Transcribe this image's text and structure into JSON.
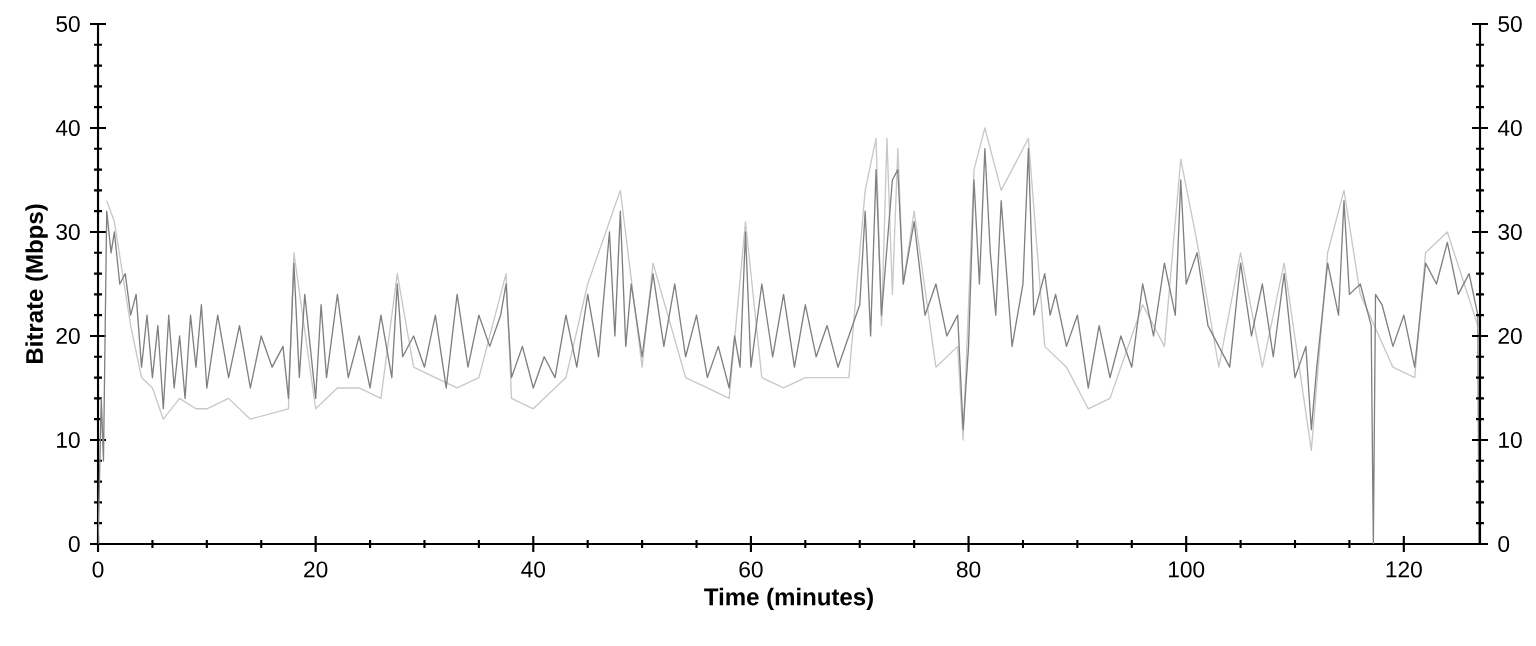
{
  "chart_data": {
    "type": "line",
    "xlabel": "Time (minutes)",
    "ylabel": "Bitrate (Mbps)",
    "xlim": [
      0,
      127
    ],
    "xticks": [
      0,
      20,
      40,
      60,
      80,
      100,
      120
    ],
    "ylim": [
      0,
      50
    ],
    "yticks": [
      0,
      10,
      20,
      30,
      40,
      50
    ],
    "y2lim": [
      0,
      50
    ],
    "y2ticks": [
      0,
      10,
      20,
      30,
      40,
      50
    ],
    "grid": false,
    "marker": "none",
    "line_style": "solid",
    "series": [
      {
        "color": "#c8c8c8",
        "x": [
          0.8,
          1.5,
          3,
          4,
          5,
          6,
          7.5,
          9,
          10,
          12,
          14,
          17.5,
          18,
          20,
          22,
          24,
          26,
          27.5,
          29,
          31,
          33,
          35,
          37.5,
          38,
          40,
          43,
          45,
          47,
          48,
          50,
          51,
          54,
          56,
          58,
          59.5,
          61,
          63,
          65,
          67,
          69,
          70.5,
          71.5,
          72,
          72.5,
          73,
          73.5,
          74,
          75,
          77,
          79,
          79.5,
          80.5,
          81.5,
          83,
          85.5,
          87,
          89,
          91,
          93,
          96,
          98,
          99.5,
          101,
          103,
          105,
          107,
          109,
          111.5,
          113,
          114.5,
          116,
          119,
          121,
          122,
          124,
          126.8
        ],
        "values": [
          33,
          31,
          21,
          16,
          15,
          12,
          14,
          13,
          13,
          14,
          12,
          13,
          28,
          13,
          15,
          15,
          14,
          26,
          17,
          16,
          15,
          16,
          26,
          14,
          13,
          16,
          25,
          31,
          34,
          17,
          27,
          16,
          15,
          14,
          31,
          16,
          15,
          16,
          16,
          16,
          34,
          39,
          21,
          39,
          24,
          38,
          25,
          32,
          17,
          19,
          10,
          36,
          40,
          34,
          39,
          19,
          17,
          13,
          14,
          23,
          19,
          37,
          29,
          17,
          28,
          17,
          27,
          9,
          28,
          34,
          24,
          17,
          16,
          28,
          30,
          21
        ]
      },
      {
        "color": "#808080",
        "x": [
          0,
          0.3,
          0.5,
          0.8,
          1.2,
          1.5,
          2,
          2.5,
          3,
          3.5,
          4,
          4.5,
          5,
          5.5,
          6,
          6.5,
          7,
          7.5,
          8,
          8.5,
          9,
          9.5,
          10,
          11,
          12,
          13,
          14,
          15,
          16,
          17,
          17.5,
          18,
          18.5,
          19,
          20,
          20.5,
          21,
          22,
          23,
          24,
          25,
          26,
          27,
          27.5,
          28,
          29,
          30,
          31,
          32,
          33,
          34,
          35,
          36,
          37,
          37.5,
          38,
          39,
          40,
          41,
          42,
          43,
          44,
          45,
          46,
          47,
          47.5,
          48,
          48.5,
          49,
          50,
          51,
          52,
          53,
          54,
          55,
          56,
          57,
          58,
          58.5,
          59,
          59.5,
          60,
          61,
          62,
          63,
          64,
          65,
          66,
          67,
          68,
          69,
          70,
          70.5,
          71,
          71.5,
          72,
          73,
          73.5,
          74,
          75,
          76,
          77,
          78,
          79,
          79.5,
          80,
          80.5,
          81,
          81.5,
          82,
          82.5,
          83,
          84,
          85,
          85.5,
          86,
          87,
          87.5,
          88,
          89,
          90,
          91,
          92,
          93,
          94,
          95,
          96,
          97,
          98,
          99,
          99.5,
          100,
          101,
          102,
          103,
          104,
          105,
          106,
          107,
          108,
          109,
          110,
          111,
          111.5,
          112,
          113,
          114,
          114.5,
          115,
          116,
          117,
          117.2,
          117.4,
          118,
          119,
          120,
          121,
          122,
          123,
          124,
          125,
          126,
          126.8,
          126.9
        ],
        "values": [
          0,
          14,
          8,
          32,
          28,
          30,
          25,
          26,
          22,
          24,
          17,
          22,
          16,
          21,
          13,
          22,
          15,
          20,
          14,
          22,
          17,
          23,
          15,
          22,
          16,
          21,
          15,
          20,
          17,
          19,
          14,
          27,
          16,
          24,
          14,
          23,
          16,
          24,
          16,
          20,
          15,
          22,
          16,
          25,
          18,
          20,
          17,
          22,
          15,
          24,
          17,
          22,
          19,
          22,
          25,
          16,
          19,
          15,
          18,
          16,
          22,
          17,
          24,
          18,
          30,
          20,
          32,
          19,
          25,
          18,
          26,
          19,
          25,
          18,
          22,
          16,
          19,
          15,
          20,
          17,
          30,
          17,
          25,
          18,
          24,
          17,
          23,
          18,
          21,
          17,
          20,
          23,
          32,
          20,
          36,
          22,
          35,
          36,
          25,
          31,
          22,
          25,
          20,
          22,
          11,
          19,
          35,
          25,
          38,
          28,
          22,
          33,
          19,
          25,
          38,
          22,
          26,
          22,
          24,
          19,
          22,
          15,
          21,
          16,
          20,
          17,
          25,
          20,
          27,
          22,
          35,
          25,
          28,
          21,
          19,
          17,
          27,
          20,
          25,
          18,
          26,
          16,
          19,
          11,
          17,
          27,
          22,
          33,
          24,
          25,
          21,
          0,
          24,
          23,
          19,
          22,
          17,
          27,
          25,
          29,
          24,
          26,
          22,
          0
        ]
      }
    ]
  }
}
